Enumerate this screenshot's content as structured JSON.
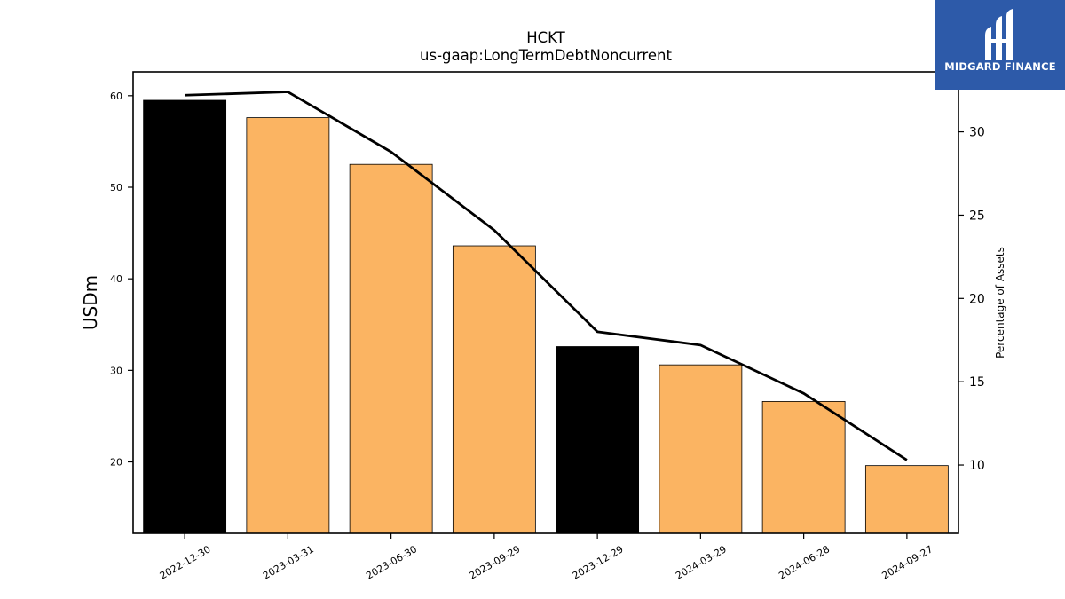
{
  "chart_data": {
    "type": "bar",
    "title": "HCKT",
    "subtitle": "us-gaap:LongTermDebtNoncurrent",
    "ylabel": "USDm",
    "y2label": "Percentage of Assets",
    "categories": [
      "2022-12-30",
      "2023-03-31",
      "2023-06-30",
      "2023-09-29",
      "2023-12-29",
      "2024-03-29",
      "2024-06-28",
      "2024-09-27"
    ],
    "series": [
      {
        "type": "bar",
        "axis": "left",
        "values": [
          59.5,
          57.6,
          52.5,
          43.6,
          32.6,
          30.6,
          26.6,
          19.6
        ],
        "colors": [
          "#000000",
          "#fbb462",
          "#fbb462",
          "#fbb462",
          "#000000",
          "#fbb462",
          "#fbb462",
          "#fbb462"
        ]
      },
      {
        "type": "line",
        "axis": "right",
        "values": [
          32.2,
          32.4,
          28.8,
          24.1,
          18.0,
          17.2,
          14.3,
          10.3
        ],
        "color": "#000000"
      }
    ],
    "ylim": [
      12.2,
      62.6
    ],
    "yticks": [
      20,
      30,
      40,
      50,
      60
    ],
    "y2lim": [
      5.9,
      33.6
    ],
    "y2ticks": [
      10,
      15,
      20,
      25,
      30
    ],
    "grid": false,
    "legend": "none"
  },
  "logo": {
    "text": "MIDGARD FINANCE",
    "background": "#2d5aa9"
  }
}
